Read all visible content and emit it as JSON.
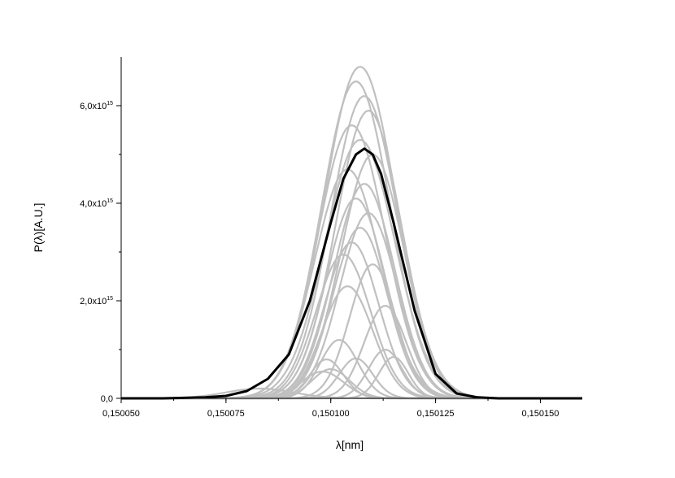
{
  "chart_data": {
    "type": "line",
    "title": "",
    "xlabel": "λ[nm]",
    "ylabel": "P(λ)[A.U.]",
    "xlim": [
      0.15005,
      0.15016
    ],
    "ylim": [
      0,
      7000000000000000.0
    ],
    "grid": false,
    "x_ticks": [
      {
        "value": 0.15005,
        "label": "0,150050"
      },
      {
        "value": 0.150075,
        "label": "0,150075"
      },
      {
        "value": 0.1501,
        "label": "0,150100"
      },
      {
        "value": 0.150125,
        "label": "0,150125"
      },
      {
        "value": 0.15015,
        "label": "0,150150"
      }
    ],
    "y_ticks": [
      {
        "value": 0,
        "mantissa": "0,0",
        "exponent": ""
      },
      {
        "value": 2000000000000000.0,
        "mantissa": "2,0x10",
        "exponent": "15"
      },
      {
        "value": 4000000000000000.0,
        "mantissa": "4,0x10",
        "exponent": "15"
      },
      {
        "value": 6000000000000000.0,
        "mantissa": "6,0x10",
        "exponent": "15"
      }
    ],
    "mean_color": "#000000",
    "shot_color": "#c0c0c0",
    "series": [
      {
        "role": "mean",
        "x": [
          0.15005,
          0.15006,
          0.15007,
          0.150075,
          0.15008,
          0.150085,
          0.15009,
          0.150095,
          0.1501,
          0.150103,
          0.150106,
          0.150108,
          0.15011,
          0.150112,
          0.150115,
          0.15012,
          0.150125,
          0.15013,
          0.150135,
          0.15014,
          0.15015,
          0.15016
        ],
        "y": [
          0,
          0,
          20000000000000.0,
          50000000000000.0,
          150000000000000.0,
          400000000000000.0,
          900000000000000.0,
          2000000000000000.0,
          3600000000000000.0,
          4500000000000000.0,
          5000000000000000.0,
          5120000000000000.0,
          5000000000000000.0,
          4600000000000000.0,
          3600000000000000.0,
          1800000000000000.0,
          500000000000000.0,
          100000000000000.0,
          20000000000000.0,
          0,
          0,
          0
        ]
      },
      {
        "role": "shot",
        "center": 0.150107,
        "amp": 6800000000000000.0,
        "sigma": 8.5e-06
      },
      {
        "role": "shot",
        "center": 0.150106,
        "amp": 6500000000000000.0,
        "sigma": 8.2e-06
      },
      {
        "role": "shot",
        "center": 0.150108,
        "amp": 6200000000000000.0,
        "sigma": 8e-06
      },
      {
        "role": "shot",
        "center": 0.150109,
        "amp": 5900000000000000.0,
        "sigma": 7.8e-06
      },
      {
        "role": "shot",
        "center": 0.150105,
        "amp": 5600000000000000.0,
        "sigma": 8e-06
      },
      {
        "role": "shot",
        "center": 0.150107,
        "amp": 5300000000000000.0,
        "sigma": 8.3e-06
      },
      {
        "role": "shot",
        "center": 0.15011,
        "amp": 5000000000000000.0,
        "sigma": 7.5e-06
      },
      {
        "role": "shot",
        "center": 0.150104,
        "amp": 4700000000000000.0,
        "sigma": 7.8e-06
      },
      {
        "role": "shot",
        "center": 0.150108,
        "amp": 4400000000000000.0,
        "sigma": 7.2e-06
      },
      {
        "role": "shot",
        "center": 0.150106,
        "amp": 4100000000000000.0,
        "sigma": 7e-06
      },
      {
        "role": "shot",
        "center": 0.150109,
        "amp": 3800000000000000.0,
        "sigma": 6.8e-06
      },
      {
        "role": "shot",
        "center": 0.150107,
        "amp": 3500000000000000.0,
        "sigma": 6.5e-06
      },
      {
        "role": "shot",
        "center": 0.150105,
        "amp": 3200000000000000.0,
        "sigma": 6.4e-06
      },
      {
        "role": "shot",
        "center": 0.150103,
        "amp": 2950000000000000.0,
        "sigma": 6.5e-06
      },
      {
        "role": "shot",
        "center": 0.15011,
        "amp": 2750000000000000.0,
        "sigma": 5.5e-06
      },
      {
        "role": "shot",
        "center": 0.150104,
        "amp": 2300000000000000.0,
        "sigma": 6e-06
      },
      {
        "role": "shot",
        "center": 0.150113,
        "amp": 1900000000000000.0,
        "sigma": 5e-06
      },
      {
        "role": "shot",
        "center": 0.150102,
        "amp": 1200000000000000.0,
        "sigma": 4.5e-06
      },
      {
        "role": "shot",
        "center": 0.150099,
        "amp": 800000000000000.0,
        "sigma": 4e-06
      },
      {
        "role": "shot",
        "center": 0.150106,
        "amp": 820000000000000.0,
        "sigma": 4e-06
      },
      {
        "role": "shot",
        "center": 0.150115,
        "amp": 850000000000000.0,
        "sigma": 3.5e-06
      },
      {
        "role": "shot",
        "center": 0.150113,
        "amp": 1000000000000000.0,
        "sigma": 4e-06
      },
      {
        "role": "shot",
        "center": 0.1501,
        "amp": 600000000000000.0,
        "sigma": 4.5e-06
      },
      {
        "role": "shot",
        "center": 0.150098,
        "amp": 550000000000000.0,
        "sigma": 5e-06
      },
      {
        "role": "shot",
        "center": 0.150083,
        "amp": 200000000000000.0,
        "sigma": 8e-06
      }
    ]
  }
}
